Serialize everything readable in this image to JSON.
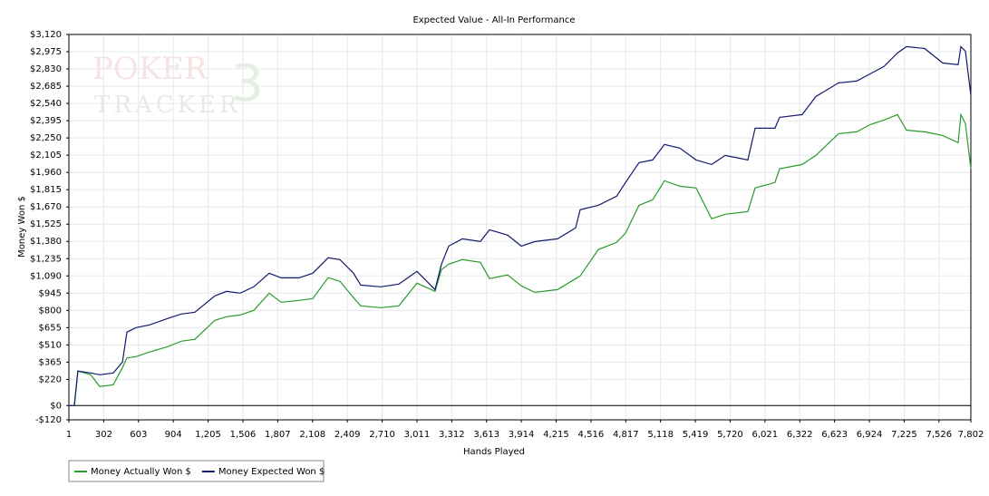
{
  "chart_data": {
    "type": "line",
    "title": "Expected Value - All-In Performance",
    "x_label": "Hands Played",
    "y_label": "Money Won $",
    "watermark": [
      "POKER",
      "TRACKER",
      "3"
    ],
    "grid": true,
    "legend": "bottom-left",
    "xlim": [
      1,
      7802
    ],
    "ylim": [
      -120,
      3120
    ],
    "xticks": [
      1,
      302,
      603,
      904,
      {
        "value": 1205,
        "label": "1,205"
      },
      {
        "value": 1506,
        "label": "1,506"
      },
      {
        "value": 1807,
        "label": "1,807"
      },
      {
        "value": 2108,
        "label": "2,108"
      },
      {
        "value": 2409,
        "label": "2,409"
      },
      {
        "value": 2710,
        "label": "2,710"
      },
      {
        "value": 3011,
        "label": "3,011"
      },
      {
        "value": 3312,
        "label": "3,312"
      },
      {
        "value": 3613,
        "label": "3,613"
      },
      {
        "value": 3914,
        "label": "3,914"
      },
      {
        "value": 4215,
        "label": "4,215"
      },
      {
        "value": 4516,
        "label": "4,516"
      },
      {
        "value": 4817,
        "label": "4,817"
      },
      {
        "value": 5118,
        "label": "5,118"
      },
      {
        "value": 5419,
        "label": "5,419"
      },
      {
        "value": 5720,
        "label": "5,720"
      },
      {
        "value": 6021,
        "label": "6,021"
      },
      {
        "value": 6322,
        "label": "6,322"
      },
      {
        "value": 6623,
        "label": "6,623"
      },
      {
        "value": 6924,
        "label": "6,924"
      },
      {
        "value": 7225,
        "label": "7,225"
      },
      {
        "value": 7526,
        "label": "7,526"
      },
      {
        "value": 7802,
        "label": "7,802"
      }
    ],
    "yticks": [
      {
        "value": -120,
        "label": "-$120"
      },
      {
        "value": 0,
        "label": "$0"
      },
      {
        "value": 220,
        "label": "$220"
      },
      {
        "value": 365,
        "label": "$365"
      },
      {
        "value": 510,
        "label": "$510"
      },
      {
        "value": 655,
        "label": "$655"
      },
      {
        "value": 800,
        "label": "$800"
      },
      {
        "value": 945,
        "label": "$945"
      },
      {
        "value": 1090,
        "label": "$1,090"
      },
      {
        "value": 1235,
        "label": "$1,235"
      },
      {
        "value": 1380,
        "label": "$1,380"
      },
      {
        "value": 1525,
        "label": "$1,525"
      },
      {
        "value": 1670,
        "label": "$1,670"
      },
      {
        "value": 1815,
        "label": "$1,815"
      },
      {
        "value": 1960,
        "label": "$1,960"
      },
      {
        "value": 2105,
        "label": "$2,105"
      },
      {
        "value": 2250,
        "label": "$2,250"
      },
      {
        "value": 2395,
        "label": "$2,395"
      },
      {
        "value": 2540,
        "label": "$2,540"
      },
      {
        "value": 2685,
        "label": "$2,685"
      },
      {
        "value": 2830,
        "label": "$2,830"
      },
      {
        "value": 2975,
        "label": "$2,975"
      },
      {
        "value": 3120,
        "label": "$3,120"
      }
    ],
    "x": [
      1,
      48,
      79,
      189,
      268,
      385,
      464,
      503,
      581,
      699,
      856,
      973,
      1091,
      1263,
      1365,
      1483,
      1600,
      1734,
      1836,
      1992,
      2110,
      2243,
      2345,
      2463,
      2525,
      2698,
      2855,
      3012,
      3168,
      3223,
      3286,
      3404,
      3560,
      3639,
      3796,
      3913,
      4031,
      4227,
      4384,
      4423,
      4580,
      4738,
      4815,
      4932,
      5050,
      5152,
      5285,
      5426,
      5560,
      5677,
      5873,
      5936,
      6108,
      6148,
      6343,
      6461,
      6657,
      6814,
      6932,
      7049,
      7167,
      7245,
      7402,
      7559,
      7692,
      7716,
      7755,
      7802
    ],
    "series": [
      {
        "name": "Money Actually Won $",
        "color": "#2a9a2a",
        "values": [
          0,
          0,
          290,
          259,
          160,
          175,
          320,
          400,
          411,
          450,
          495,
          541,
          557,
          716,
          747,
          762,
          800,
          945,
          869,
          884,
          899,
          1075,
          1044,
          907,
          838,
          823,
          838,
          1029,
          960,
          1143,
          1189,
          1227,
          1204,
          1067,
          1098,
          1006,
          952,
          975,
          1067,
          1090,
          1311,
          1372,
          1449,
          1684,
          1730,
          1890,
          1844,
          1829,
          1570,
          1608,
          1631,
          1829,
          1875,
          1990,
          2027,
          2103,
          2286,
          2301,
          2362,
          2400,
          2446,
          2316,
          2301,
          2271,
          2210,
          2446,
          2370,
          1990
        ]
      },
      {
        "name": "Money Expected Won $",
        "color": "#101a6e",
        "values": [
          0,
          0,
          290,
          274,
          259,
          274,
          366,
          617,
          655,
          678,
          732,
          770,
          785,
          922,
          960,
          945,
          998,
          1113,
          1074,
          1074,
          1113,
          1242,
          1227,
          1113,
          1013,
          998,
          1021,
          1128,
          975,
          1189,
          1341,
          1402,
          1379,
          1478,
          1433,
          1341,
          1379,
          1402,
          1494,
          1646,
          1684,
          1760,
          1875,
          2042,
          2065,
          2195,
          2164,
          2065,
          2027,
          2103,
          2065,
          2332,
          2332,
          2423,
          2446,
          2598,
          2713,
          2728,
          2789,
          2850,
          2964,
          3018,
          3002,
          2880,
          2865,
          3018,
          2979,
          2606
        ]
      }
    ]
  }
}
